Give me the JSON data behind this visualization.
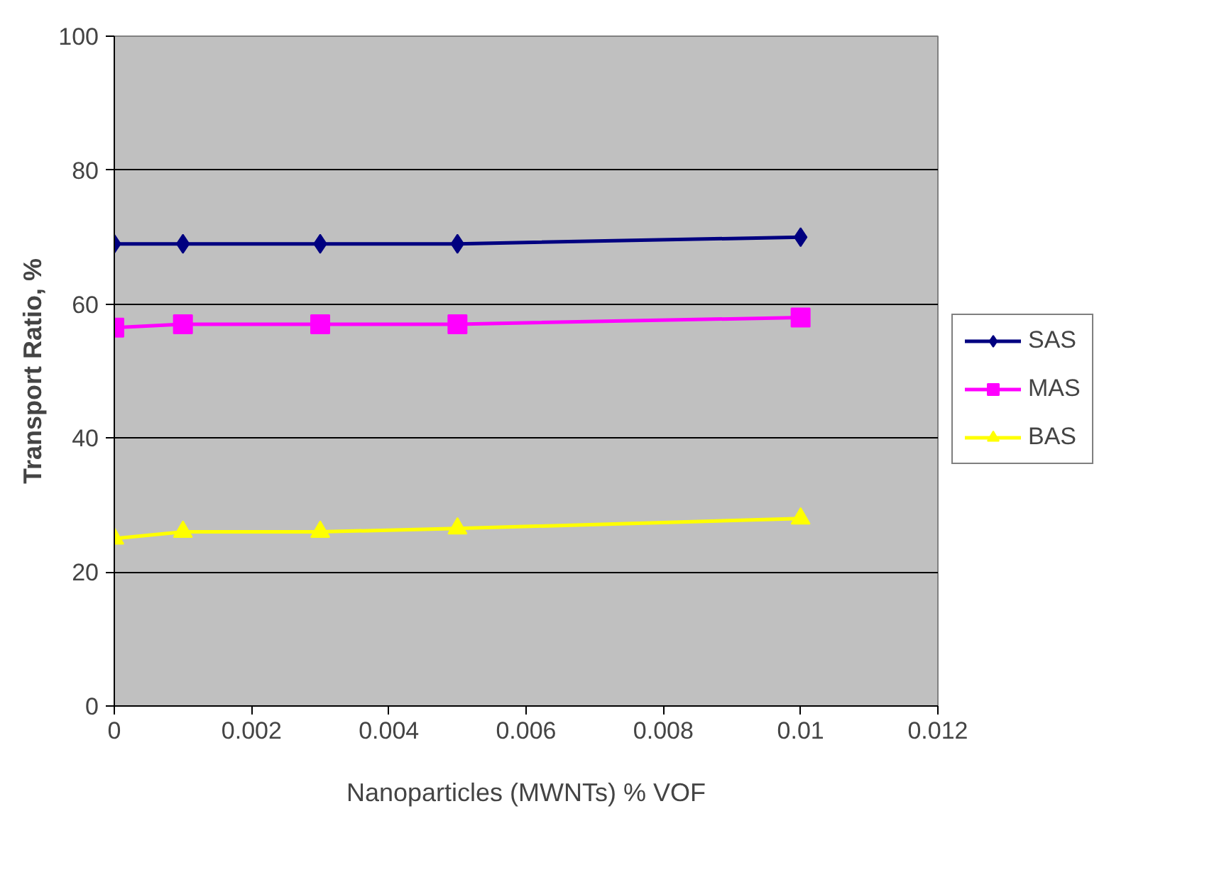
{
  "chart_data": {
    "type": "line",
    "xlabel": "Nanoparticles (MWNTs) % VOF",
    "ylabel": "Transport Ratio, %",
    "x": [
      0,
      0.001,
      0.003,
      0.005,
      0.01
    ],
    "series": [
      {
        "name": "SAS",
        "color": "#000080",
        "marker": "diamond",
        "values": [
          69,
          69,
          69,
          69,
          70
        ]
      },
      {
        "name": "MAS",
        "color": "#ff00ff",
        "marker": "square",
        "values": [
          56.5,
          57,
          57,
          57,
          58
        ]
      },
      {
        "name": "BAS",
        "color": "#ffff00",
        "marker": "triangle",
        "values": [
          25,
          26,
          26,
          26.5,
          28
        ]
      }
    ],
    "xlim": [
      0,
      0.012
    ],
    "xticks": [
      0,
      0.002,
      0.004,
      0.006,
      0.008,
      0.01,
      0.012
    ],
    "ylim": [
      0,
      100
    ],
    "yticks": [
      0,
      20,
      40,
      60,
      80,
      100
    ],
    "grid": "y",
    "legend": "right",
    "line_style": "solid"
  }
}
